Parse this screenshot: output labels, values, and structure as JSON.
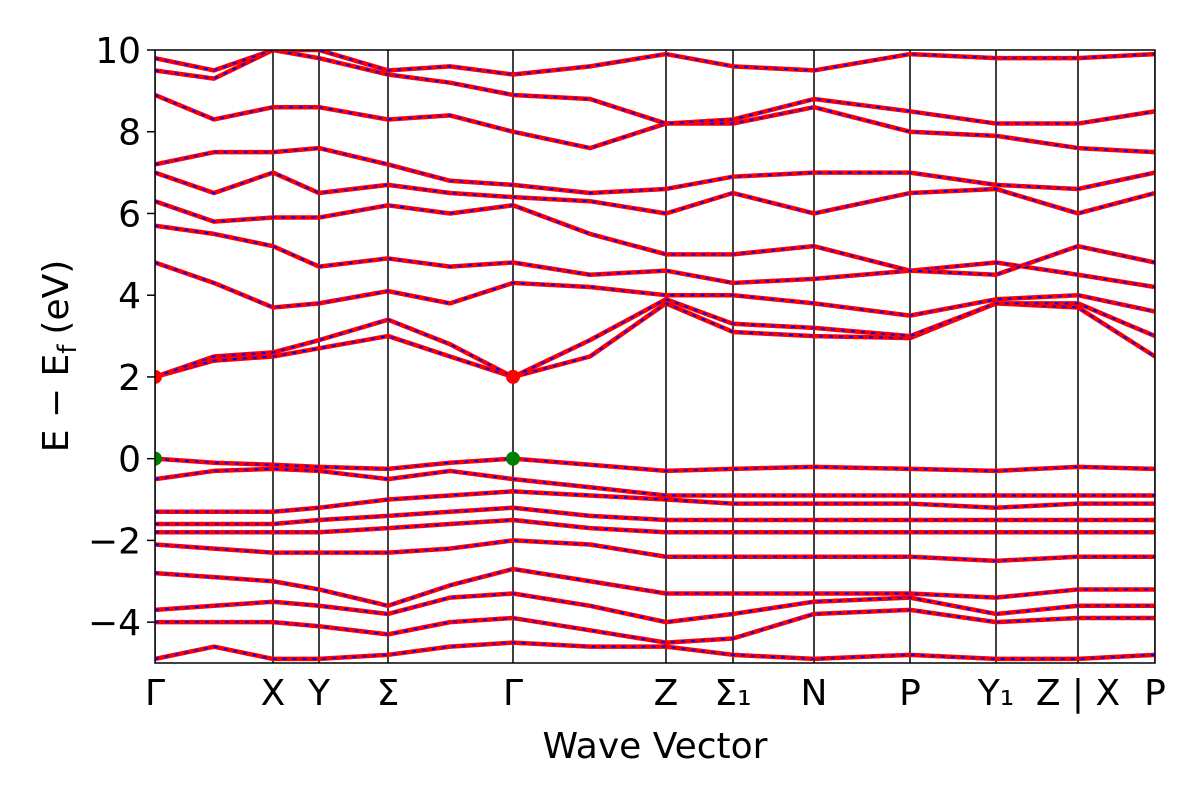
{
  "chart_data": {
    "type": "line",
    "xlabel": "Wave Vector",
    "ylabel": {
      "text": "E − E",
      "sub": "f",
      "unit": "(eV)"
    },
    "xlim": [
      0,
      10
    ],
    "ylim": [
      -5,
      10
    ],
    "xticks": [
      {
        "value": 0,
        "label": "Γ"
      },
      {
        "value": 1.18,
        "label": "X"
      },
      {
        "value": 1.64,
        "label": "Y"
      },
      {
        "value": 2.33,
        "label": "Σ"
      },
      {
        "value": 3.58,
        "label": "Γ"
      },
      {
        "value": 5.11,
        "label": "Z"
      },
      {
        "value": 5.78,
        "label": "Σ₁"
      },
      {
        "value": 6.59,
        "label": "N"
      },
      {
        "value": 7.55,
        "label": "P"
      },
      {
        "value": 8.41,
        "label": "Y₁"
      },
      {
        "value": 9.23,
        "label": "Z | X"
      },
      {
        "value": 10,
        "label": "P"
      }
    ],
    "yticks": [
      {
        "value": -4,
        "label": "−4"
      },
      {
        "value": -2,
        "label": "−2"
      },
      0,
      2,
      4,
      6,
      8,
      10
    ],
    "xgrid": true,
    "overlay_color": "#0000ff",
    "x": [
      0,
      0.59,
      1.18,
      1.64,
      2.33,
      2.95,
      3.58,
      4.35,
      5.11,
      5.78,
      6.59,
      7.55,
      8.41,
      9.23,
      10
    ],
    "series": [
      {
        "color": "#ff0000",
        "values": [
          0,
          -0.1,
          -0.15,
          -0.2,
          -0.25,
          -0.1,
          0,
          -0.15,
          -0.3,
          -0.25,
          -0.2,
          -0.25,
          -0.3,
          -0.2,
          -0.25
        ]
      },
      {
        "color": "#ff0000",
        "values": [
          -0.5,
          -0.3,
          -0.25,
          -0.3,
          -0.5,
          -0.3,
          -0.5,
          -0.7,
          -0.9,
          -0.9,
          -0.9,
          -0.9,
          -0.9,
          -0.9,
          -0.9
        ]
      },
      {
        "color": "#ff0000",
        "values": [
          -1.3,
          -1.3,
          -1.3,
          -1.2,
          -1,
          -0.9,
          -0.8,
          -0.9,
          -1,
          -1.1,
          -1.1,
          -1.1,
          -1.2,
          -1.1,
          -1.1
        ]
      },
      {
        "color": "#ff0000",
        "values": [
          -1.6,
          -1.6,
          -1.6,
          -1.5,
          -1.4,
          -1.3,
          -1.2,
          -1.4,
          -1.5,
          -1.5,
          -1.5,
          -1.5,
          -1.5,
          -1.5,
          -1.5
        ]
      },
      {
        "color": "#ff0000",
        "values": [
          -1.8,
          -1.8,
          -1.8,
          -1.8,
          -1.7,
          -1.6,
          -1.5,
          -1.7,
          -1.8,
          -1.8,
          -1.8,
          -1.8,
          -1.8,
          -1.8,
          -1.8
        ]
      },
      {
        "color": "#ff0000",
        "values": [
          -2.1,
          -2.2,
          -2.3,
          -2.3,
          -2.3,
          -2.2,
          -2,
          -2.1,
          -2.4,
          -2.4,
          -2.4,
          -2.4,
          -2.5,
          -2.4,
          -2.4
        ]
      },
      {
        "color": "#ff0000",
        "values": [
          -2.8,
          -2.9,
          -3,
          -3.2,
          -3.6,
          -3.1,
          -2.7,
          -3,
          -3.3,
          -3.3,
          -3.3,
          -3.3,
          -3.4,
          -3.2,
          -3.2
        ]
      },
      {
        "color": "#ff0000",
        "values": [
          -3.7,
          -3.6,
          -3.5,
          -3.6,
          -3.8,
          -3.4,
          -3.3,
          -3.6,
          -4,
          -3.8,
          -3.5,
          -3.4,
          -3.8,
          -3.6,
          -3.6
        ]
      },
      {
        "color": "#ff0000",
        "values": [
          -4,
          -4,
          -4,
          -4.1,
          -4.3,
          -4,
          -3.9,
          -4.2,
          -4.5,
          -4.4,
          -3.8,
          -3.7,
          -4,
          -3.9,
          -3.9
        ]
      },
      {
        "color": "#ff0000",
        "values": [
          -4.9,
          -4.6,
          -4.9,
          -4.9,
          -4.8,
          -4.6,
          -4.5,
          -4.6,
          -4.6,
          -4.8,
          -4.9,
          -4.8,
          -4.9,
          -4.9,
          -4.8
        ]
      },
      {
        "color": "#ff0000",
        "values": [
          2,
          2.4,
          2.5,
          2.7,
          3,
          2.5,
          2,
          2.5,
          3.8,
          3.1,
          3,
          2.95,
          3.8,
          3.7,
          2.5
        ]
      },
      {
        "color": "#ff0000",
        "values": [
          2,
          2.5,
          2.6,
          2.9,
          3.4,
          2.8,
          2,
          2.9,
          3.9,
          3.3,
          3.2,
          3,
          3.8,
          3.8,
          3
        ]
      },
      {
        "color": "#ff0000",
        "values": [
          4.8,
          4.3,
          3.7,
          3.8,
          4.1,
          3.8,
          4.3,
          4.2,
          4,
          4,
          3.8,
          3.5,
          3.9,
          4,
          3.6
        ]
      },
      {
        "color": "#ff0000",
        "values": [
          5.7,
          5.5,
          5.2,
          4.7,
          4.9,
          4.7,
          4.8,
          4.5,
          4.6,
          4.3,
          4.4,
          4.6,
          4.8,
          4.5,
          4.2
        ]
      },
      {
        "color": "#ff0000",
        "values": [
          6.3,
          5.8,
          5.9,
          5.9,
          6.2,
          6,
          6.2,
          5.5,
          5,
          5,
          5.2,
          4.6,
          4.5,
          5.2,
          4.8
        ]
      },
      {
        "color": "#ff0000",
        "values": [
          7,
          6.5,
          7,
          6.5,
          6.7,
          6.5,
          6.4,
          6.3,
          6,
          6.5,
          6,
          6.5,
          6.6,
          6,
          6.5
        ]
      },
      {
        "color": "#ff0000",
        "values": [
          7.2,
          7.5,
          7.5,
          7.6,
          7.2,
          6.8,
          6.7,
          6.5,
          6.6,
          6.9,
          7,
          7,
          6.7,
          6.6,
          7
        ]
      },
      {
        "color": "#ff0000",
        "values": [
          8.9,
          8.3,
          8.6,
          8.6,
          8.3,
          8.4,
          8,
          7.6,
          8.2,
          8.2,
          8.6,
          8,
          7.9,
          7.6,
          7.5
        ]
      },
      {
        "color": "#ff0000",
        "values": [
          9.5,
          9.3,
          10,
          9.8,
          9.4,
          9.2,
          8.9,
          8.8,
          8.2,
          8.3,
          8.8,
          8.5,
          8.2,
          8.2,
          8.5
        ]
      },
      {
        "color": "#ff0000",
        "values": [
          9.8,
          9.5,
          10,
          10,
          9.5,
          9.6,
          9.4,
          9.6,
          9.9,
          9.6,
          9.5,
          9.9,
          9.8,
          9.8,
          9.9
        ]
      }
    ],
    "points": {
      "x": [
        0,
        3.58,
        0,
        3.58
      ],
      "y": [
        2,
        2,
        0,
        0
      ],
      "colors": [
        "#ff0000",
        "#ff0000",
        "#008000",
        "#008000"
      ]
    }
  }
}
